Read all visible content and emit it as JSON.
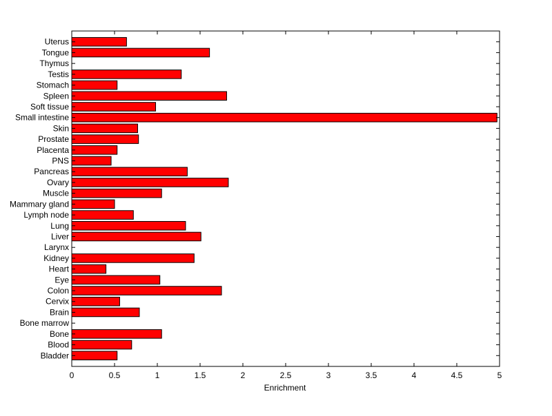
{
  "chart_data": {
    "type": "bar",
    "orientation": "horizontal",
    "title": "",
    "xlabel": "Enrichment",
    "ylabel": "",
    "xlim": [
      0,
      5
    ],
    "xticks": [
      "0",
      "0.5",
      "1",
      "1.5",
      "2",
      "2.5",
      "3",
      "3.5",
      "4",
      "4.5",
      "5"
    ],
    "grid": false,
    "legend": "none",
    "bar_color": "#ff0000",
    "bar_edge_color": "#000000",
    "categories": [
      "Bladder",
      "Blood",
      "Bone",
      "Bone marrow",
      "Brain",
      "Cervix",
      "Colon",
      "Eye",
      "Heart",
      "Kidney",
      "Larynx",
      "Liver",
      "Lung",
      "Lymph node",
      "Mammary gland",
      "Muscle",
      "Ovary",
      "Pancreas",
      "PNS",
      "Placenta",
      "Prostate",
      "Skin",
      "Small intestine",
      "Soft tissue",
      "Spleen",
      "Stomach",
      "Testis",
      "Thymus",
      "Tongue",
      "Uterus"
    ],
    "values": [
      0.53,
      0.7,
      1.05,
      0,
      0.79,
      0.56,
      1.75,
      1.03,
      0.4,
      1.43,
      0,
      1.51,
      1.33,
      0.72,
      0.5,
      1.05,
      1.83,
      1.35,
      0.46,
      0.53,
      0.78,
      0.77,
      4.97,
      0.98,
      1.81,
      0.53,
      1.28,
      0,
      1.61,
      0.64
    ]
  }
}
